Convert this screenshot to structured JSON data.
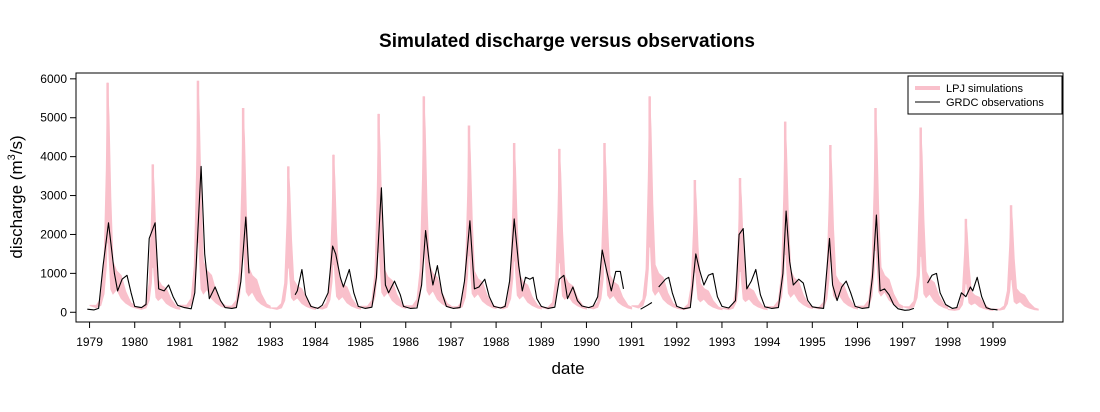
{
  "chart_data": {
    "type": "line",
    "title": "Simulated discharge versus observations",
    "xlabel": "date",
    "ylabel": "discharge (m",
    "ylabel_sup": "3",
    "ylabel_end": "/s)",
    "xlim": [
      1978.7,
      2000.55
    ],
    "ylim": [
      -250,
      6150
    ],
    "x_ticks": [
      1979,
      1980,
      1981,
      1982,
      1983,
      1984,
      1985,
      1986,
      1987,
      1988,
      1989,
      1990,
      1991,
      1992,
      1993,
      1994,
      1995,
      1996,
      1997,
      1998,
      1999
    ],
    "y_ticks": [
      0,
      1000,
      2000,
      3000,
      4000,
      5000,
      6000
    ],
    "legend_position": "top-right",
    "colors": {
      "simulations": "#f9c0cb",
      "observations": "#000000"
    },
    "series": [
      {
        "name": "LPJ simulations",
        "style": "band",
        "years": [
          1979,
          1980,
          1981,
          1982,
          1983,
          1984,
          1985,
          1986,
          1987,
          1988,
          1989,
          1990,
          1991,
          1992,
          1993,
          1994,
          1995,
          1996,
          1997,
          1998,
          1999
        ],
        "peak": [
          5900,
          3800,
          5950,
          5250,
          3750,
          4050,
          5100,
          5550,
          4800,
          4350,
          4200,
          4350,
          5550,
          3400,
          3450,
          4900,
          4300,
          5250,
          4750,
          2400,
          2750
        ]
      },
      {
        "name": "GRDC observations",
        "style": "line",
        "segments": [
          [
            [
              1978.95,
              80
            ],
            [
              1979.1,
              60
            ],
            [
              1979.2,
              100
            ],
            [
              1979.3,
              1200
            ],
            [
              1979.42,
              2300
            ],
            [
              1979.55,
              1000
            ],
            [
              1979.62,
              550
            ],
            [
              1979.72,
              850
            ],
            [
              1979.83,
              950
            ],
            [
              1979.92,
              500
            ],
            [
              1980.0,
              150
            ],
            [
              1980.15,
              120
            ],
            [
              1980.25,
              200
            ],
            [
              1980.32,
              1900
            ],
            [
              1980.45,
              2300
            ],
            [
              1980.53,
              600
            ],
            [
              1980.65,
              550
            ],
            [
              1980.75,
              700
            ],
            [
              1980.85,
              400
            ],
            [
              1980.95,
              180
            ],
            [
              1981.1,
              120
            ],
            [
              1981.25,
              90
            ],
            [
              1981.33,
              500
            ],
            [
              1981.47,
              3750
            ],
            [
              1981.55,
              1500
            ],
            [
              1981.65,
              350
            ],
            [
              1981.78,
              650
            ],
            [
              1981.9,
              300
            ],
            [
              1982.0,
              120
            ],
            [
              1982.15,
              100
            ],
            [
              1982.25,
              120
            ],
            [
              1982.35,
              800
            ],
            [
              1982.46,
              2450
            ],
            [
              1982.53,
              1000
            ]
          ],
          [
            [
              1983.55,
              450
            ],
            [
              1983.6,
              550
            ],
            [
              1983.7,
              1100
            ],
            [
              1983.78,
              450
            ],
            [
              1983.9,
              150
            ],
            [
              1984.05,
              100
            ],
            [
              1984.15,
              180
            ],
            [
              1984.28,
              500
            ],
            [
              1984.38,
              1700
            ],
            [
              1984.45,
              1500
            ],
            [
              1984.55,
              900
            ],
            [
              1984.62,
              650
            ],
            [
              1984.75,
              1100
            ],
            [
              1984.85,
              500
            ],
            [
              1984.95,
              150
            ],
            [
              1985.1,
              100
            ],
            [
              1985.25,
              130
            ],
            [
              1985.35,
              900
            ],
            [
              1985.46,
              3200
            ],
            [
              1985.55,
              700
            ],
            [
              1985.62,
              500
            ],
            [
              1985.75,
              800
            ],
            [
              1985.88,
              450
            ],
            [
              1985.95,
              150
            ],
            [
              1986.1,
              100
            ],
            [
              1986.25,
              110
            ],
            [
              1986.35,
              700
            ],
            [
              1986.44,
              2100
            ],
            [
              1986.52,
              1300
            ],
            [
              1986.6,
              700
            ],
            [
              1986.7,
              1200
            ],
            [
              1986.8,
              500
            ],
            [
              1986.9,
              150
            ],
            [
              1987.05,
              100
            ],
            [
              1987.2,
              120
            ],
            [
              1987.3,
              800
            ],
            [
              1987.42,
              2350
            ],
            [
              1987.52,
              600
            ],
            [
              1987.62,
              650
            ],
            [
              1987.75,
              850
            ],
            [
              1987.85,
              400
            ],
            [
              1987.95,
              150
            ],
            [
              1988.1,
              110
            ],
            [
              1988.2,
              150
            ],
            [
              1988.3,
              800
            ],
            [
              1988.4,
              2400
            ],
            [
              1988.5,
              1200
            ],
            [
              1988.58,
              550
            ],
            [
              1988.65,
              900
            ],
            [
              1988.75,
              850
            ],
            [
              1988.82,
              900
            ],
            [
              1988.9,
              350
            ],
            [
              1989.0,
              150
            ],
            [
              1989.15,
              100
            ],
            [
              1989.3,
              130
            ],
            [
              1989.4,
              850
            ],
            [
              1989.5,
              950
            ],
            [
              1989.58,
              350
            ],
            [
              1989.7,
              650
            ],
            [
              1989.8,
              300
            ],
            [
              1989.9,
              160
            ],
            [
              1990.05,
              120
            ],
            [
              1990.15,
              160
            ],
            [
              1990.25,
              400
            ],
            [
              1990.35,
              1600
            ],
            [
              1990.45,
              1050
            ],
            [
              1990.55,
              550
            ],
            [
              1990.65,
              1050
            ],
            [
              1990.75,
              1050
            ],
            [
              1990.82,
              600
            ]
          ],
          [
            [
              1991.2,
              80
            ],
            [
              1991.35,
              180
            ],
            [
              1991.45,
              250
            ]
          ],
          [
            [
              1991.6,
              650
            ],
            [
              1991.75,
              850
            ],
            [
              1991.82,
              900
            ],
            [
              1991.9,
              500
            ],
            [
              1992.0,
              150
            ],
            [
              1992.15,
              90
            ],
            [
              1992.3,
              120
            ],
            [
              1992.42,
              1500
            ],
            [
              1992.5,
              1100
            ],
            [
              1992.6,
              700
            ],
            [
              1992.7,
              950
            ],
            [
              1992.8,
              1000
            ],
            [
              1992.9,
              400
            ],
            [
              1993.0,
              150
            ],
            [
              1993.15,
              110
            ],
            [
              1993.3,
              300
            ],
            [
              1993.38,
              2000
            ],
            [
              1993.47,
              2150
            ],
            [
              1993.55,
              600
            ],
            [
              1993.65,
              800
            ],
            [
              1993.75,
              1100
            ],
            [
              1993.85,
              450
            ],
            [
              1993.95,
              140
            ],
            [
              1994.1,
              100
            ],
            [
              1994.25,
              120
            ],
            [
              1994.35,
              1000
            ],
            [
              1994.42,
              2600
            ],
            [
              1994.5,
              1300
            ],
            [
              1994.58,
              700
            ],
            [
              1994.7,
              850
            ],
            [
              1994.8,
              750
            ],
            [
              1994.9,
              300
            ],
            [
              1995.0,
              140
            ],
            [
              1995.1,
              120
            ],
            [
              1995.25,
              100
            ],
            [
              1995.38,
              1900
            ],
            [
              1995.45,
              700
            ],
            [
              1995.55,
              300
            ],
            [
              1995.65,
              650
            ],
            [
              1995.75,
              800
            ],
            [
              1995.85,
              500
            ],
            [
              1995.95,
              150
            ],
            [
              1996.1,
              100
            ],
            [
              1996.25,
              120
            ],
            [
              1996.33,
              900
            ],
            [
              1996.42,
              2500
            ],
            [
              1996.5,
              550
            ],
            [
              1996.6,
              600
            ],
            [
              1996.7,
              450
            ],
            [
              1996.8,
              200
            ],
            [
              1996.9,
              90
            ],
            [
              1997.05,
              50
            ],
            [
              1997.15,
              60
            ],
            [
              1997.25,
              100
            ]
          ],
          [
            [
              1997.55,
              750
            ],
            [
              1997.65,
              950
            ],
            [
              1997.75,
              1000
            ],
            [
              1997.83,
              500
            ],
            [
              1997.95,
              200
            ],
            [
              1998.1,
              100
            ],
            [
              1998.2,
              120
            ],
            [
              1998.3,
              500
            ],
            [
              1998.4,
              400
            ],
            [
              1998.5,
              650
            ],
            [
              1998.55,
              550
            ],
            [
              1998.65,
              900
            ],
            [
              1998.75,
              400
            ],
            [
              1998.85,
              120
            ],
            [
              1998.95,
              80
            ],
            [
              1999.05,
              70
            ],
            [
              1999.1,
              60
            ]
          ]
        ]
      }
    ]
  }
}
